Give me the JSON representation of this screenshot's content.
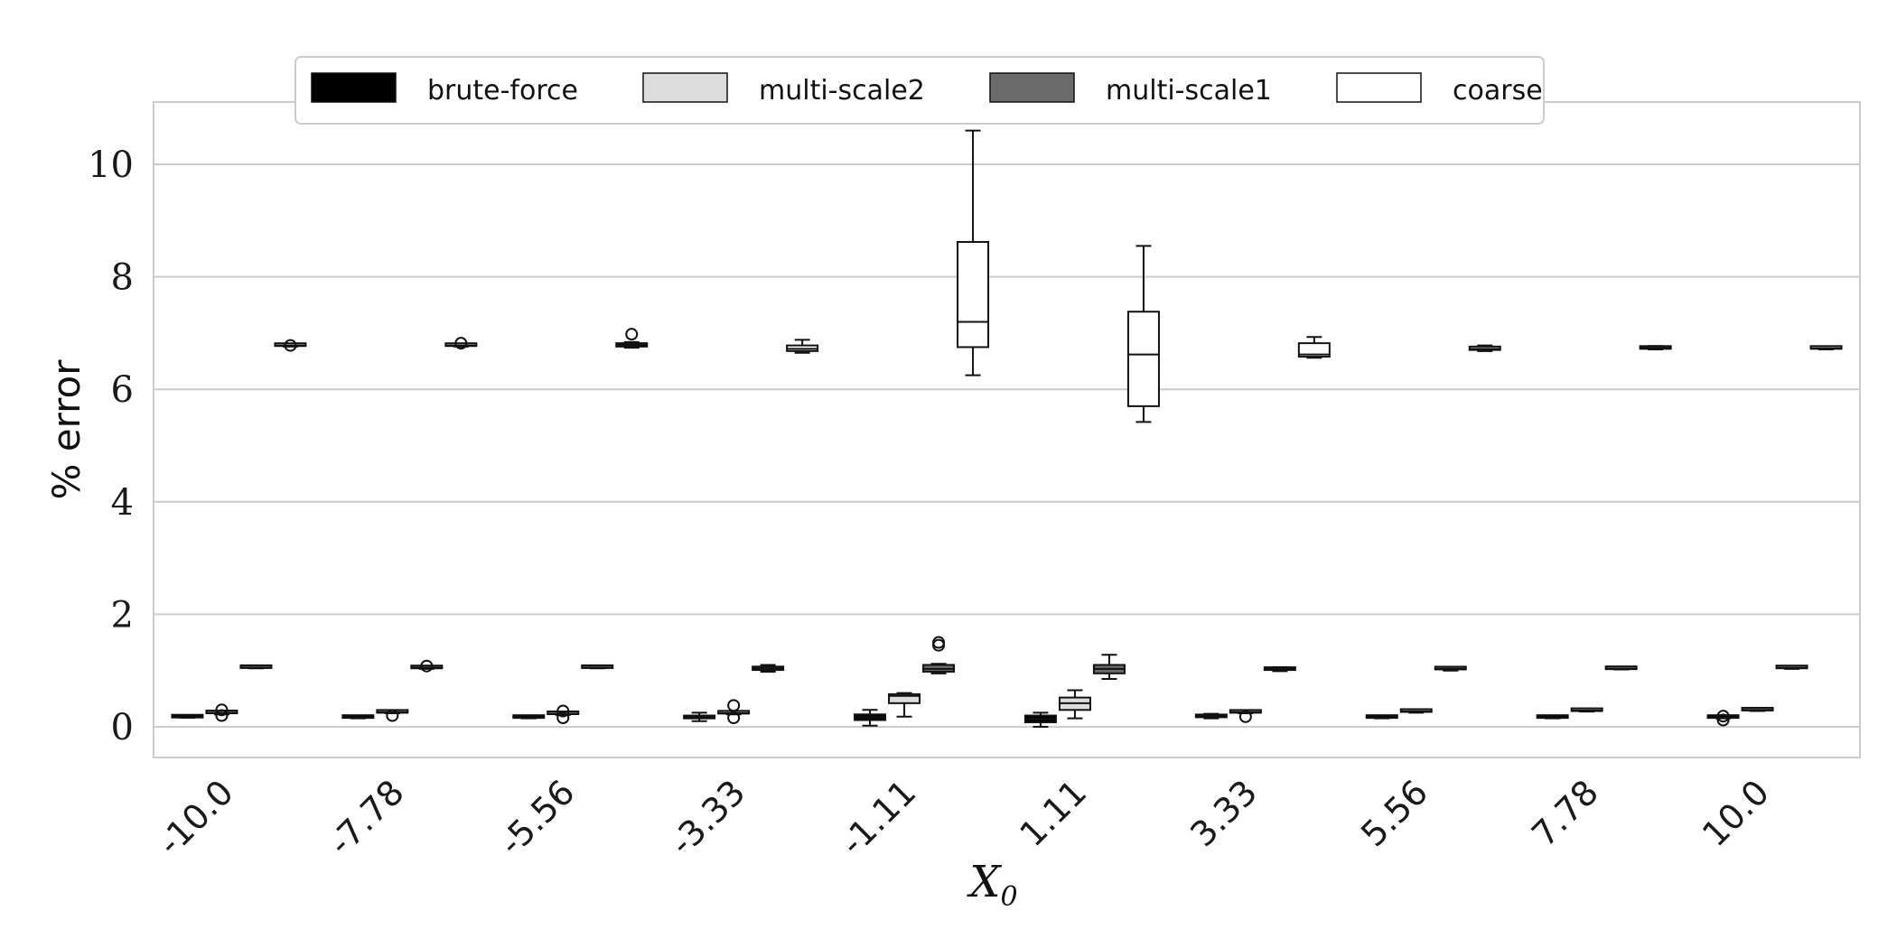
{
  "chart_data": {
    "type": "box",
    "xlabel": "X",
    "xlabel_sub": "0",
    "ylabel": "% error",
    "ylim": [
      -0.5,
      11
    ],
    "yticks": [
      "0",
      "2",
      "4",
      "6",
      "8",
      "10"
    ],
    "grid": "horizontal",
    "legend_placement": "top-center",
    "categories": [
      "-10.0",
      "-7.78",
      "-5.56",
      "-3.33",
      "-1.11",
      "1.11",
      "3.33",
      "5.56",
      "7.78",
      "10.0"
    ],
    "series": [
      {
        "name": "brute-force",
        "color": "#000000",
        "boxes": [
          {
            "min": 0.16,
            "q1": 0.165,
            "median": 0.17,
            "q3": 0.175,
            "max": 0.18,
            "outliers": []
          },
          {
            "min": 0.15,
            "q1": 0.158,
            "median": 0.165,
            "q3": 0.172,
            "max": 0.18,
            "outliers": []
          },
          {
            "min": 0.15,
            "q1": 0.158,
            "median": 0.165,
            "q3": 0.172,
            "max": 0.18,
            "outliers": []
          },
          {
            "min": 0.1,
            "q1": 0.15,
            "median": 0.17,
            "q3": 0.2,
            "max": 0.25,
            "outliers": []
          },
          {
            "min": 0.02,
            "q1": 0.12,
            "median": 0.17,
            "q3": 0.22,
            "max": 0.3,
            "outliers": []
          },
          {
            "min": 0.0,
            "q1": 0.08,
            "median": 0.14,
            "q3": 0.2,
            "max": 0.25,
            "outliers": []
          },
          {
            "min": 0.15,
            "q1": 0.17,
            "median": 0.19,
            "q3": 0.21,
            "max": 0.23,
            "outliers": []
          },
          {
            "min": 0.15,
            "q1": 0.158,
            "median": 0.165,
            "q3": 0.172,
            "max": 0.18,
            "outliers": []
          },
          {
            "min": 0.15,
            "q1": 0.158,
            "median": 0.165,
            "q3": 0.172,
            "max": 0.18,
            "outliers": []
          },
          {
            "min": 0.15,
            "q1": 0.158,
            "median": 0.165,
            "q3": 0.172,
            "max": 0.18,
            "outliers": [
              0.12,
              0.19
            ]
          }
        ]
      },
      {
        "name": "multi-scale2",
        "color": "#dcdcdc",
        "boxes": [
          {
            "min": 0.22,
            "q1": 0.24,
            "median": 0.25,
            "q3": 0.26,
            "max": 0.28,
            "outliers": [
              0.2,
              0.3
            ]
          },
          {
            "min": 0.24,
            "q1": 0.25,
            "median": 0.26,
            "q3": 0.27,
            "max": 0.28,
            "outliers": [
              0.2
            ]
          },
          {
            "min": 0.21,
            "q1": 0.225,
            "median": 0.235,
            "q3": 0.245,
            "max": 0.26,
            "outliers": [
              0.16,
              0.28
            ]
          },
          {
            "min": 0.22,
            "q1": 0.235,
            "median": 0.245,
            "q3": 0.255,
            "max": 0.27,
            "outliers": [
              0.16,
              0.38
            ]
          },
          {
            "min": 0.18,
            "q1": 0.42,
            "median": 0.55,
            "q3": 0.58,
            "max": 0.6,
            "outliers": []
          },
          {
            "min": 0.15,
            "q1": 0.3,
            "median": 0.42,
            "q3": 0.52,
            "max": 0.65,
            "outliers": []
          },
          {
            "min": 0.24,
            "q1": 0.25,
            "median": 0.26,
            "q3": 0.27,
            "max": 0.28,
            "outliers": [
              0.18
            ]
          },
          {
            "min": 0.25,
            "q1": 0.265,
            "median": 0.275,
            "q3": 0.285,
            "max": 0.3,
            "outliers": []
          },
          {
            "min": 0.27,
            "q1": 0.28,
            "median": 0.29,
            "q3": 0.3,
            "max": 0.31,
            "outliers": []
          },
          {
            "min": 0.28,
            "q1": 0.29,
            "median": 0.3,
            "q3": 0.31,
            "max": 0.32,
            "outliers": []
          }
        ]
      },
      {
        "name": "multi-scale1",
        "color": "#6b6b6b",
        "boxes": [
          {
            "min": 1.04,
            "q1": 1.045,
            "median": 1.05,
            "q3": 1.055,
            "max": 1.06,
            "outliers": []
          },
          {
            "min": 1.03,
            "q1": 1.04,
            "median": 1.05,
            "q3": 1.06,
            "max": 1.07,
            "outliers": [
              1.08
            ]
          },
          {
            "min": 1.04,
            "q1": 1.045,
            "median": 1.05,
            "q3": 1.055,
            "max": 1.06,
            "outliers": []
          },
          {
            "min": 0.98,
            "q1": 1.01,
            "median": 1.04,
            "q3": 1.07,
            "max": 1.1,
            "outliers": []
          },
          {
            "min": 0.95,
            "q1": 0.98,
            "median": 1.03,
            "q3": 1.1,
            "max": 1.12,
            "outliers": [
              1.45,
              1.5
            ]
          },
          {
            "min": 0.85,
            "q1": 0.95,
            "median": 1.03,
            "q3": 1.1,
            "max": 1.28,
            "outliers": []
          },
          {
            "min": 0.99,
            "q1": 1.01,
            "median": 1.03,
            "q3": 1.04,
            "max": 1.06,
            "outliers": []
          },
          {
            "min": 1.0,
            "q1": 1.02,
            "median": 1.03,
            "q3": 1.04,
            "max": 1.06,
            "outliers": []
          },
          {
            "min": 1.02,
            "q1": 1.025,
            "median": 1.03,
            "q3": 1.035,
            "max": 1.04,
            "outliers": []
          },
          {
            "min": 1.03,
            "q1": 1.04,
            "median": 1.045,
            "q3": 1.05,
            "max": 1.06,
            "outliers": []
          }
        ]
      },
      {
        "name": "coarse",
        "color": "#ffffff",
        "boxes": [
          {
            "min": 6.76,
            "q1": 6.77,
            "median": 6.78,
            "q3": 6.79,
            "max": 6.8,
            "outliers": [
              6.78
            ]
          },
          {
            "min": 6.76,
            "q1": 6.77,
            "median": 6.78,
            "q3": 6.79,
            "max": 6.8,
            "outliers": [
              6.82
            ]
          },
          {
            "min": 6.74,
            "q1": 6.76,
            "median": 6.79,
            "q3": 6.82,
            "max": 6.84,
            "outliers": [
              6.98
            ]
          },
          {
            "min": 6.65,
            "q1": 6.68,
            "median": 6.72,
            "q3": 6.78,
            "max": 6.88,
            "outliers": []
          },
          {
            "min": 6.25,
            "q1": 6.75,
            "median": 7.2,
            "q3": 8.62,
            "max": 10.6,
            "outliers": []
          },
          {
            "min": 5.42,
            "q1": 5.7,
            "median": 6.62,
            "q3": 7.38,
            "max": 8.55,
            "outliers": []
          },
          {
            "min": 6.56,
            "q1": 6.58,
            "median": 6.62,
            "q3": 6.82,
            "max": 6.93,
            "outliers": []
          },
          {
            "min": 6.68,
            "q1": 6.7,
            "median": 6.72,
            "q3": 6.76,
            "max": 6.78,
            "outliers": []
          },
          {
            "min": 6.71,
            "q1": 6.72,
            "median": 6.74,
            "q3": 6.76,
            "max": 6.77,
            "outliers": []
          },
          {
            "min": 6.71,
            "q1": 6.72,
            "median": 6.73,
            "q3": 6.74,
            "max": 6.75,
            "outliers": []
          }
        ]
      }
    ]
  }
}
